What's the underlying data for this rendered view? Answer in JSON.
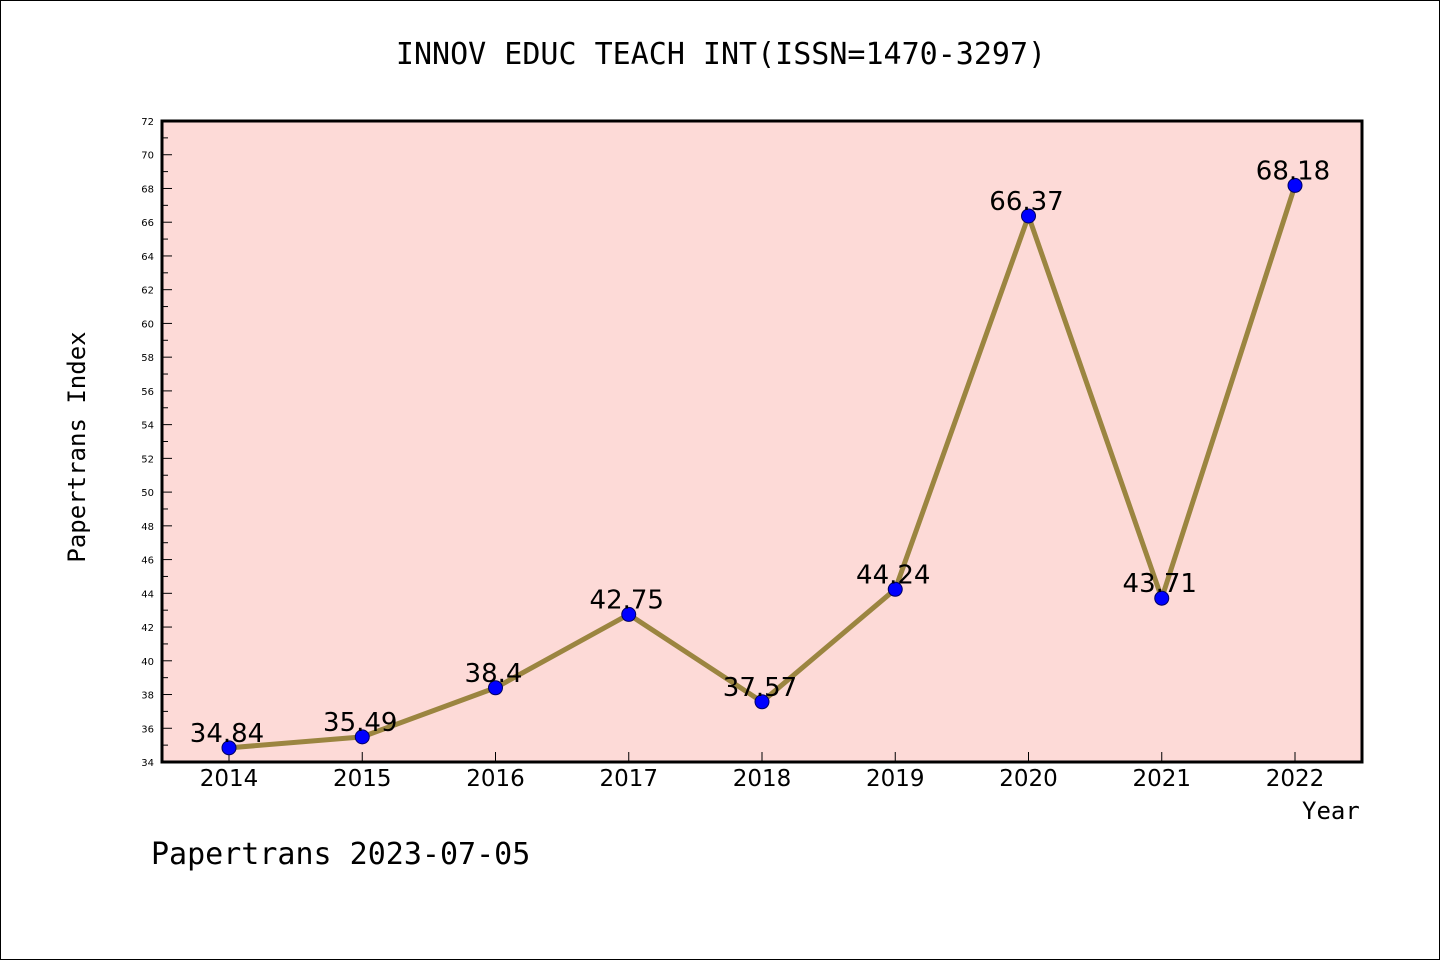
{
  "chart_data": {
    "type": "line",
    "title": "INNOV EDUC TEACH INT(ISSN=1470-3297)",
    "xlabel": "Year",
    "ylabel": "Papertrans Index",
    "categories": [
      "2014",
      "2015",
      "2016",
      "2017",
      "2018",
      "2019",
      "2020",
      "2021",
      "2022"
    ],
    "series": [
      {
        "values": [
          34.84,
          35.49,
          38.4,
          42.75,
          37.57,
          44.24,
          66.37,
          43.71,
          68.18
        ],
        "labels": [
          "34.84",
          "35.49",
          "38.4",
          "42.75",
          "37.57",
          "44.24",
          "66.37",
          "43.71",
          "68.18"
        ]
      }
    ],
    "ylim": [
      34,
      72
    ],
    "y_ticks": [
      "34",
      "36",
      "38",
      "40",
      "42",
      "44",
      "46",
      "48",
      "50",
      "52",
      "54",
      "56",
      "58",
      "60",
      "62",
      "64",
      "66",
      "68",
      "70",
      "72"
    ],
    "grid": false,
    "colors": {
      "plot_background": "#fddad7",
      "line": "#9b8540",
      "marker": "#0000ff"
    }
  },
  "footer": "Papertrans 2023-07-05"
}
